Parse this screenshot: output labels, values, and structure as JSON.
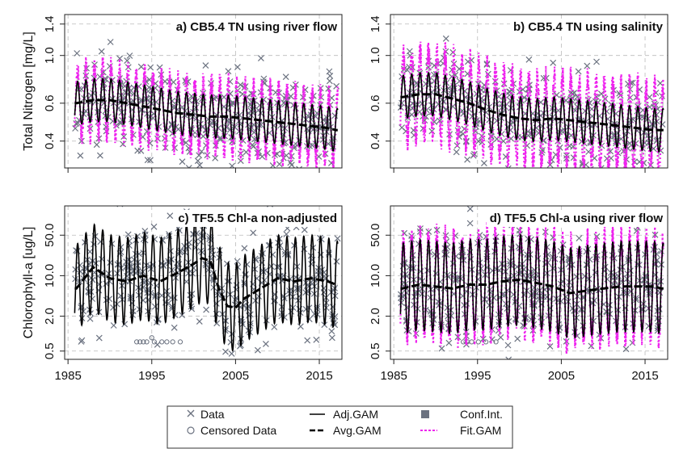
{
  "chart_data": [
    {
      "panel_id": "a",
      "type": "line",
      "title": "a) CB5.4 TN using river flow",
      "ylabel": "Total Nitrogen [mg/L]",
      "y_scale": "log",
      "ylim": [
        0.3,
        1.55
      ],
      "y_ticks": [
        0.4,
        0.6,
        1.0,
        1.4
      ],
      "y_tick_labels": [
        "0.4",
        "0.6",
        "1.0",
        "1.4"
      ],
      "xlim": [
        1984.6,
        2017.7
      ],
      "x_ticks": [
        1985,
        1995,
        2005,
        2015
      ],
      "x_tick_labels": [],
      "grid": true,
      "series": [
        {
          "name": "Avg.GAM",
          "style": "long-dashed thick",
          "x": [
            1986,
            1988,
            1990,
            1992,
            1994,
            1996,
            1998,
            2000,
            2002,
            2004,
            2006,
            2008,
            2010,
            2012,
            2014,
            2016,
            2017
          ],
          "y": [
            0.6,
            0.62,
            0.62,
            0.6,
            0.58,
            0.56,
            0.54,
            0.53,
            0.52,
            0.52,
            0.51,
            0.5,
            0.49,
            0.48,
            0.47,
            0.46,
            0.45
          ]
        },
        {
          "name": "Adj.GAM",
          "style": "solid seasonal",
          "amplitude_log10": 0.1,
          "period_years": 1,
          "follows": "Avg.GAM"
        },
        {
          "name": "Fit.GAM",
          "style": "dotted magenta",
          "amplitude_log10": 0.16,
          "period_years": 1,
          "follows": "Avg.GAM"
        },
        {
          "name": "Data",
          "marker": "x",
          "count": 380,
          "spread_log10": 0.18,
          "follows": "Avg.GAM"
        }
      ]
    },
    {
      "panel_id": "b",
      "type": "line",
      "title": "b) CB5.4 TN using salinity",
      "ylabel": "",
      "y_scale": "log",
      "ylim": [
        0.3,
        1.55
      ],
      "y_ticks": [
        0.4,
        0.6,
        1.0,
        1.4
      ],
      "y_tick_labels": [
        "0.4",
        "0.6",
        "1.0",
        "1.4"
      ],
      "xlim": [
        1984.6,
        2017.7
      ],
      "x_ticks": [
        1985,
        1995,
        2005,
        2015
      ],
      "x_tick_labels": [],
      "grid": true,
      "series": [
        {
          "name": "Avg.GAM",
          "style": "long-dashed thick",
          "x": [
            1986,
            1988,
            1990,
            1992,
            1994,
            1996,
            1998,
            2000,
            2002,
            2004,
            2006,
            2008,
            2010,
            2012,
            2014,
            2016,
            2017
          ],
          "y": [
            0.64,
            0.66,
            0.66,
            0.63,
            0.6,
            0.56,
            0.53,
            0.51,
            0.5,
            0.51,
            0.5,
            0.49,
            0.48,
            0.47,
            0.46,
            0.45,
            0.45
          ]
        },
        {
          "name": "Adj.GAM",
          "style": "solid seasonal",
          "amplitude_log10": 0.1,
          "period_years": 1,
          "follows": "Avg.GAM"
        },
        {
          "name": "Fit.GAM",
          "style": "dotted magenta",
          "amplitude_log10": 0.2,
          "period_years": 1,
          "follows": "Avg.GAM"
        },
        {
          "name": "Data",
          "marker": "x",
          "count": 380,
          "spread_log10": 0.18,
          "follows": "Avg.GAM"
        }
      ]
    },
    {
      "panel_id": "c",
      "type": "line",
      "title": "c) TF5.5 Chl-a non-adjusted",
      "ylabel": "Chlorophyll-a [ug/L]",
      "y_scale": "log",
      "ylim": [
        0.36,
        160
      ],
      "y_ticks": [
        0.5,
        2.0,
        10.0,
        50.0
      ],
      "y_tick_labels": [
        "0.5",
        "2.0",
        "10.0",
        "50.0"
      ],
      "xlim": [
        1984.6,
        2017.7
      ],
      "x_ticks": [
        1985,
        1995,
        2005,
        2015
      ],
      "x_tick_labels": [
        "1985",
        "1995",
        "2005",
        "2015"
      ],
      "grid": true,
      "series": [
        {
          "name": "Avg.GAM",
          "style": "long-dashed thick",
          "x": [
            1986,
            1988,
            1990,
            1992,
            1994,
            1996,
            1998,
            2000,
            2001,
            2002,
            2003,
            2004,
            2005,
            2006,
            2008,
            2010,
            2012,
            2014,
            2016,
            2017
          ],
          "y": [
            6,
            14,
            9,
            8,
            10,
            8,
            11,
            16,
            20,
            18,
            6,
            3,
            2.8,
            4,
            6,
            9,
            8,
            9,
            8,
            7
          ]
        },
        {
          "name": "Adj.GAM",
          "style": "solid seasonal",
          "amplitude_log10": 0.75,
          "period_years": 1,
          "follows": "Avg.GAM"
        },
        {
          "name": "Data",
          "marker": "x",
          "count": 420,
          "spread_log10": 0.55,
          "follows": "Avg.GAM"
        },
        {
          "name": "Censored Data",
          "marker": "o",
          "x": [
            1993.2,
            1993.6,
            1994.0,
            1994.4,
            1995.0,
            1995.3,
            1996.2,
            1996.8,
            1997.5,
            1998.4
          ],
          "y": [
            0.72,
            0.72,
            0.72,
            0.72,
            0.85,
            0.72,
            0.72,
            0.72,
            0.72,
            0.72
          ]
        }
      ]
    },
    {
      "panel_id": "d",
      "type": "line",
      "title": "d) TF5.5 Chl-a using river flow",
      "ylabel": "",
      "y_scale": "log",
      "ylim": [
        0.36,
        160
      ],
      "y_ticks": [
        0.5,
        2.0,
        10.0,
        50.0
      ],
      "y_tick_labels": [
        "0.5",
        "2.0",
        "10.0",
        "50.0"
      ],
      "xlim": [
        1984.6,
        2017.7
      ],
      "x_ticks": [
        1985,
        1995,
        2005,
        2015
      ],
      "x_tick_labels": [
        "1985",
        "1995",
        "2005",
        "2015"
      ],
      "grid": true,
      "series": [
        {
          "name": "Avg.GAM",
          "style": "long-dashed thick",
          "x": [
            1986,
            1988,
            1990,
            1992,
            1994,
            1996,
            1998,
            2000,
            2002,
            2004,
            2006,
            2008,
            2010,
            2012,
            2014,
            2016,
            2017
          ],
          "y": [
            6,
            7,
            6.5,
            6,
            7,
            7,
            8,
            8.5,
            7.5,
            6.5,
            5,
            5.5,
            6,
            6.5,
            6.5,
            6.5,
            6
          ]
        },
        {
          "name": "Adj.GAM",
          "style": "solid seasonal",
          "amplitude_log10": 0.78,
          "period_years": 1,
          "follows": "Avg.GAM"
        },
        {
          "name": "Fit.GAM",
          "style": "dotted magenta",
          "amplitude_log10": 0.85,
          "period_years": 1,
          "follows": "Avg.GAM"
        },
        {
          "name": "Data",
          "marker": "x",
          "count": 420,
          "spread_log10": 0.55,
          "follows": "Avg.GAM"
        },
        {
          "name": "Censored Data",
          "marker": "o",
          "x": [
            1993.3,
            1993.8,
            1994.3,
            1995.1,
            1996.0,
            1997.2
          ],
          "y": [
            0.72,
            0.72,
            0.72,
            0.72,
            0.72,
            0.72
          ]
        }
      ]
    }
  ],
  "legend": {
    "items": [
      {
        "label": "Data",
        "symbol": "x",
        "color": "#6b7280"
      },
      {
        "label": "Censored Data",
        "symbol": "circle",
        "color": "#6b7280"
      },
      {
        "label": "Adj.GAM",
        "symbol": "solid-line",
        "color": "#000000"
      },
      {
        "label": "Avg.GAM",
        "symbol": "long-dash-line",
        "color": "#000000"
      },
      {
        "label": "Conf.Int.",
        "symbol": "square",
        "color": "#6b7280"
      },
      {
        "label": "Fit.GAM",
        "symbol": "dotted-line",
        "color": "#ee22ee"
      }
    ]
  },
  "colors": {
    "data_marker": "#6b7280",
    "adj_gam": "#000000",
    "fit_gam": "#ee22ee",
    "conf_int": "#9aa0a6",
    "grid": "#bbbbbb"
  }
}
